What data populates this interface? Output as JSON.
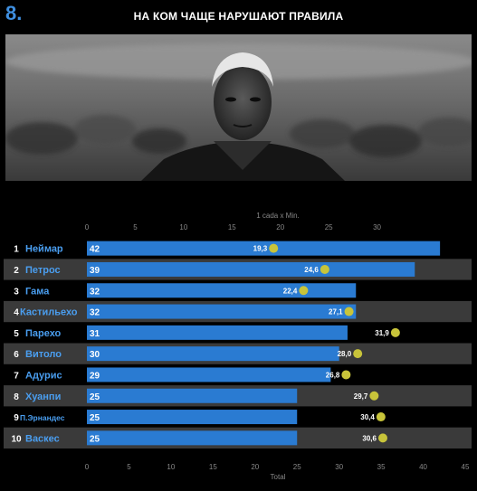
{
  "header": {
    "page_number": "8.",
    "title": "НА КОМ ЧАЩЕ НАРУШАЮТ ПРАВИЛА"
  },
  "colors": {
    "bar": "#2a7bd2",
    "dot": "#c8c43a",
    "row_band": "#3a3a3a",
    "background": "#000000",
    "name": "#4a9ef0",
    "page_number": "#3f8fe0"
  },
  "chart_data": {
    "type": "bar",
    "orientation": "horizontal",
    "top_axis": {
      "label": "1 cada x Min.",
      "ticks": [
        0,
        5,
        10,
        15,
        20,
        25,
        30
      ],
      "range": [
        0,
        35
      ]
    },
    "bottom_axis": {
      "label": "Total",
      "ticks": [
        0,
        5,
        10,
        15,
        20,
        25,
        30,
        35,
        40,
        45
      ],
      "range": [
        0,
        45
      ]
    },
    "players": [
      {
        "rank": "1",
        "name": "Неймар",
        "total": 42,
        "total_label": "42",
        "rate": 19.3,
        "rate_label": "19,3"
      },
      {
        "rank": "2",
        "name": "Петрос",
        "total": 39,
        "total_label": "39",
        "rate": 24.6,
        "rate_label": "24,6"
      },
      {
        "rank": "3",
        "name": "Гама",
        "total": 32,
        "total_label": "32",
        "rate": 22.4,
        "rate_label": "22,4"
      },
      {
        "rank": "4",
        "name": "Кастильехо",
        "total": 32,
        "total_label": "32",
        "rate": 27.1,
        "rate_label": "27,1"
      },
      {
        "rank": "5",
        "name": "Парехо",
        "total": 31,
        "total_label": "31",
        "rate": 31.9,
        "rate_label": "31,9"
      },
      {
        "rank": "6",
        "name": "Витоло",
        "total": 30,
        "total_label": "30",
        "rate": 28.0,
        "rate_label": "28,0"
      },
      {
        "rank": "7",
        "name": "Адурис",
        "total": 29,
        "total_label": "29",
        "rate": 26.8,
        "rate_label": "26,8"
      },
      {
        "rank": "8",
        "name": "Хуанпи",
        "total": 25,
        "total_label": "25",
        "rate": 29.7,
        "rate_label": "29,7"
      },
      {
        "rank": "9",
        "name": "П.Эрнандес",
        "total": 25,
        "total_label": "25",
        "rate": 30.4,
        "rate_label": "30,4"
      },
      {
        "rank": "10",
        "name": "Васкес",
        "total": 25,
        "total_label": "25",
        "rate": 30.6,
        "rate_label": "30,6"
      }
    ]
  }
}
